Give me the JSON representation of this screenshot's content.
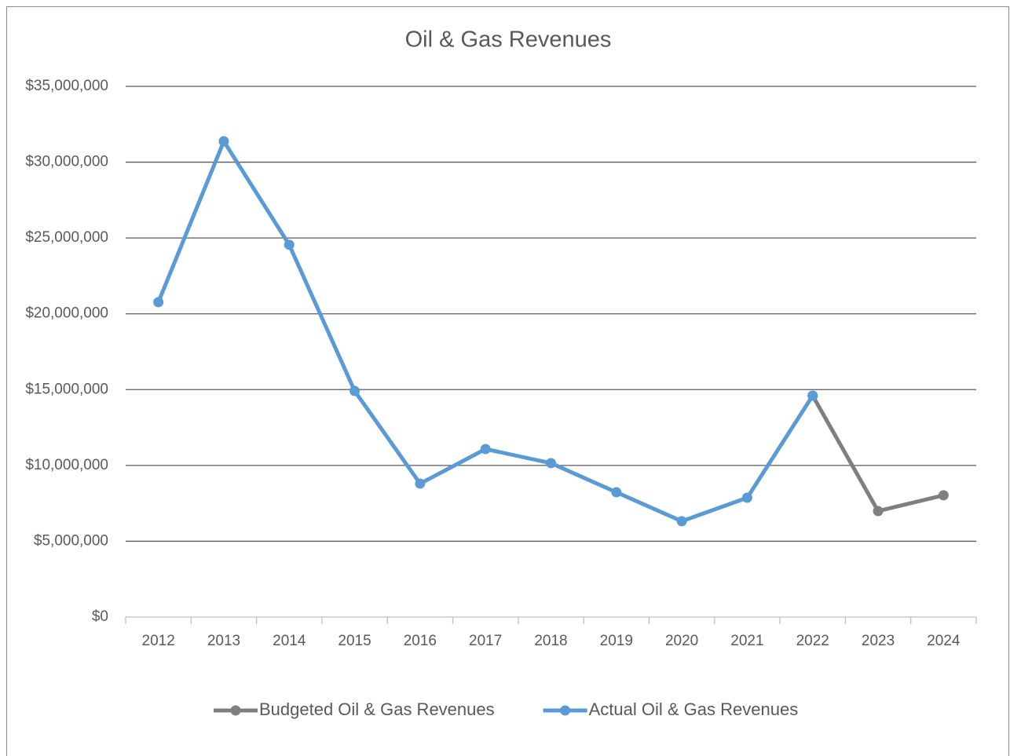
{
  "chart_data": {
    "type": "line",
    "title": "Oil & Gas Revenues",
    "categories": [
      "2012",
      "2013",
      "2014",
      "2015",
      "2016",
      "2017",
      "2018",
      "2019",
      "2020",
      "2021",
      "2022",
      "2023",
      "2024"
    ],
    "series": [
      {
        "name": "Budgeted Oil & Gas Revenues",
        "color": "#7f7f7f",
        "values": [
          null,
          null,
          null,
          null,
          null,
          null,
          null,
          null,
          null,
          null,
          14600000,
          6990000,
          8030000
        ]
      },
      {
        "name": "Actual Oil & Gas Revenues",
        "color": "#5b9bd5",
        "values": [
          20770000,
          31380000,
          24550000,
          14910000,
          8800000,
          11080000,
          10150000,
          8230000,
          6320000,
          7870000,
          14600000,
          null,
          null
        ]
      }
    ],
    "ylim": [
      0,
      35000000
    ],
    "yticks": [
      {
        "value": 0,
        "label": "$0"
      },
      {
        "value": 5000000,
        "label": "$5,000,000"
      },
      {
        "value": 10000000,
        "label": "$10,000,000"
      },
      {
        "value": 15000000,
        "label": "$15,000,000"
      },
      {
        "value": 20000000,
        "label": "$20,000,000"
      },
      {
        "value": 25000000,
        "label": "$25,000,000"
      },
      {
        "value": 30000000,
        "label": "$30,000,000"
      },
      {
        "value": 35000000,
        "label": "$35,000,000"
      }
    ],
    "grid": true,
    "legend": "bottom"
  }
}
